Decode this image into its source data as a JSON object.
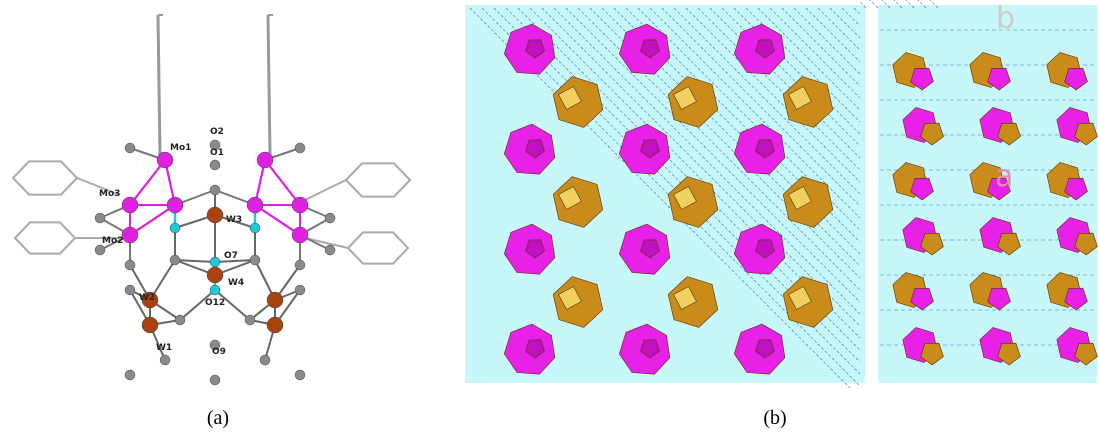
{
  "figure": {
    "panels": [
      {
        "label": "(a)",
        "atom_labels": [
          "Mo1",
          "O2",
          "O1",
          "Mo3",
          "Mo2",
          "W3",
          "O7",
          "W4",
          "W2",
          "O12",
          "W1",
          "O9"
        ]
      },
      {
        "label": "(b)",
        "axis_labels": [
          "b",
          "a"
        ]
      }
    ]
  }
}
